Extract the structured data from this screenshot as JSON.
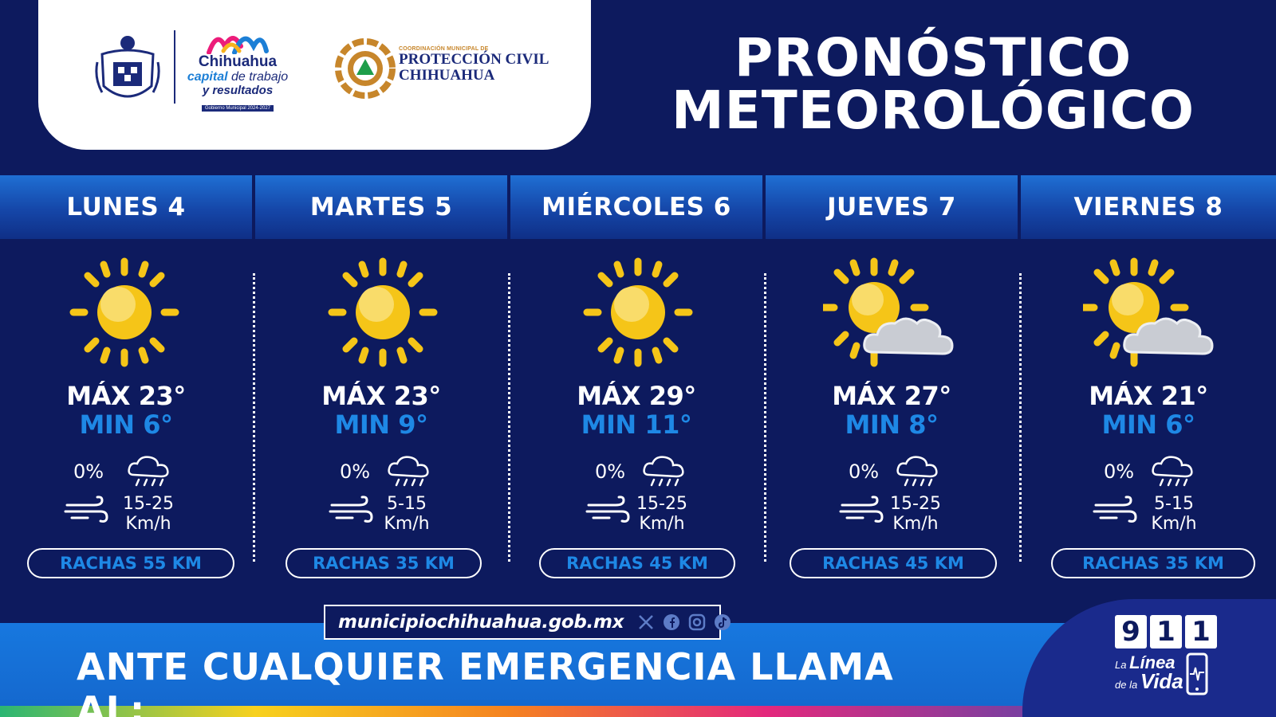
{
  "header": {
    "brand_line1": "Chihuahua",
    "brand_accent": "capital",
    "brand_line2_rest": " de trabajo",
    "brand_line3": "y resultados",
    "brand_tag": "Gobierno Municipal 2024-2027",
    "pc_small": "COORDINACIÓN MUNICIPAL DE",
    "pc_line1": "PROTECCIÓN CIVIL",
    "pc_line2": "CHIHUAHUA",
    "title_line1": "PRONÓSTICO",
    "title_line2": "METEOROLÓGICO"
  },
  "days": [
    {
      "name": "LUNES 4",
      "max": "MÁX 23°",
      "min": "MIN 6°",
      "rain": "0%",
      "wind1": "15-25",
      "wind2": "Km/h",
      "gust": "RACHAS 55 KM",
      "icon": "sun-icon"
    },
    {
      "name": "MARTES 5",
      "max": "MÁX 23°",
      "min": "MIN 9°",
      "rain": "0%",
      "wind1": "5-15",
      "wind2": "Km/h",
      "gust": "RACHAS 35 KM",
      "icon": "sun-icon"
    },
    {
      "name": "MIÉRCOLES 6",
      "max": "MÁX 29°",
      "min": "MIN 11°",
      "rain": "0%",
      "wind1": "15-25",
      "wind2": "Km/h",
      "gust": "RACHAS 45 KM",
      "icon": "sun-icon"
    },
    {
      "name": "JUEVES 7",
      "max": "MÁX 27°",
      "min": "MIN 8°",
      "rain": "0%",
      "wind1": "15-25",
      "wind2": "Km/h",
      "gust": "RACHAS 45 KM",
      "icon": "partly-cloudy-icon"
    },
    {
      "name": "VIERNES 8",
      "max": "MÁX 21°",
      "min": "MIN 6°",
      "rain": "0%",
      "wind1": "5-15",
      "wind2": "Km/h",
      "gust": "RACHAS 35 KM",
      "icon": "partly-cloudy-icon"
    }
  ],
  "footer": {
    "url": "municipiochihuahua.gob.mx",
    "emergency": "ANTE CUALQUIER EMERGENCIA LLAMA AL:",
    "digit1": "9",
    "digit2": "1",
    "digit3": "1",
    "linea_pre": "La ",
    "linea_word": "Línea",
    "vida_pre": "de la ",
    "vida_word": "Vida"
  },
  "colors": {
    "background": "#0d1a5e",
    "min_temp": "#1e88e5",
    "sun": "#f5c518"
  }
}
